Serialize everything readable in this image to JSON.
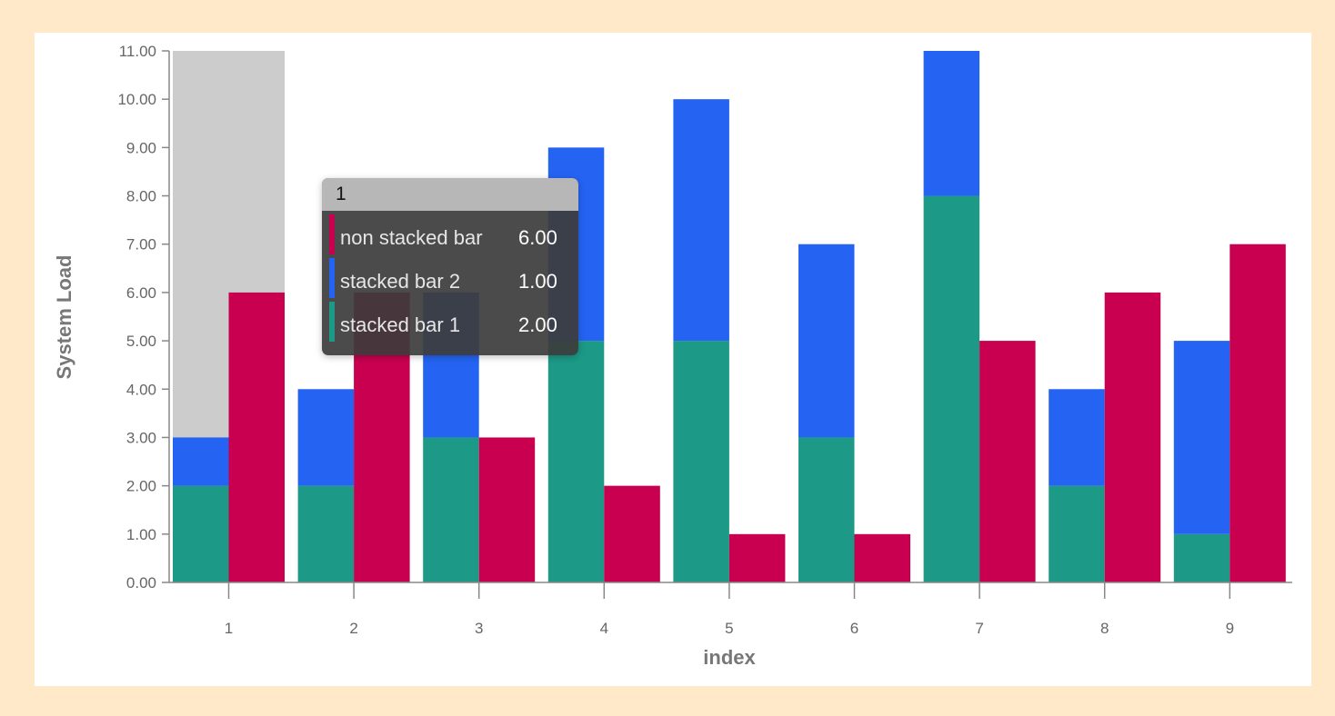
{
  "chart_data": {
    "type": "bar",
    "categories": [
      "1",
      "2",
      "3",
      "4",
      "5",
      "6",
      "7",
      "8",
      "9"
    ],
    "xlabel": "index",
    "ylabel": "System Load",
    "ylim": [
      0,
      11
    ],
    "yticks": [
      "0.00",
      "1.00",
      "2.00",
      "3.00",
      "4.00",
      "5.00",
      "6.00",
      "7.00",
      "8.00",
      "9.00",
      "10.00",
      "11.00"
    ],
    "stacked_series": [
      {
        "name": "stacked bar 1",
        "color": "#1c9a87",
        "values": [
          2,
          2,
          3,
          5,
          5,
          3,
          8,
          2,
          1
        ]
      },
      {
        "name": "stacked bar 2",
        "color": "#2563f2",
        "values": [
          1,
          2,
          3,
          4,
          5,
          4,
          3,
          2,
          4
        ]
      }
    ],
    "unstacked_series": [
      {
        "name": "non stacked bar",
        "color": "#c8004f",
        "values": [
          6,
          6,
          3,
          2,
          1,
          1,
          5,
          6,
          7
        ]
      }
    ],
    "hover_highlight": {
      "category": "1",
      "color": "#cccccc"
    },
    "grid": false,
    "legend": "none"
  },
  "tooltip": {
    "title": "1",
    "rows": [
      {
        "name": "non stacked bar",
        "value": "6.00",
        "color": "#c8004f"
      },
      {
        "name": "stacked bar 2",
        "value": "1.00",
        "color": "#2563f2"
      },
      {
        "name": "stacked bar 1",
        "value": "2.00",
        "color": "#1c9a87"
      }
    ]
  }
}
